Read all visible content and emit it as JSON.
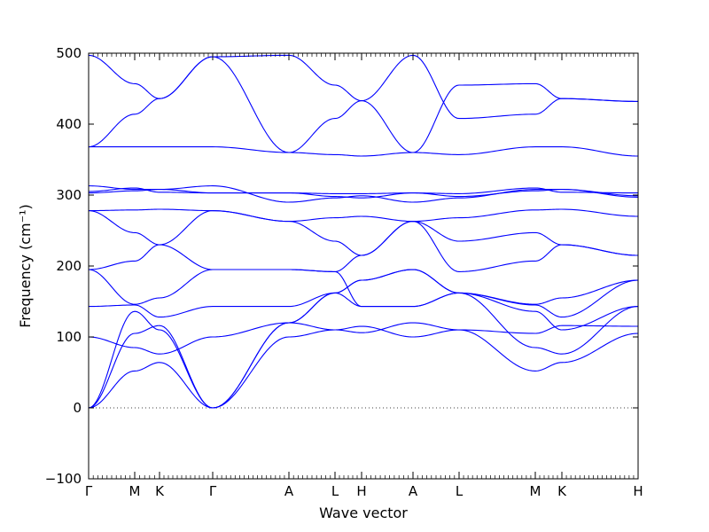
{
  "chart_data": {
    "type": "line",
    "xlabel": "Wave vector",
    "ylabel": "Frequency (cm⁻¹)",
    "ylim": [
      -100,
      500
    ],
    "yticks": [
      -100,
      0,
      100,
      200,
      300,
      400,
      500
    ],
    "xlim": [
      0,
      15.5
    ],
    "xticks": [
      {
        "label": "Γ",
        "x": 0
      },
      {
        "label": "M",
        "x": 1.3
      },
      {
        "label": "K",
        "x": 2.0
      },
      {
        "label": "Γ",
        "x": 3.5
      },
      {
        "label": "A",
        "x": 5.65
      },
      {
        "label": "L",
        "x": 6.95
      },
      {
        "label": "H",
        "x": 7.7
      },
      {
        "label": "A",
        "x": 9.15
      },
      {
        "label": "L",
        "x": 10.45
      },
      {
        "label": "M",
        "x": 12.6
      },
      {
        "label": "K",
        "x": 13.35
      },
      {
        "label": "H",
        "x": 15.5
      }
    ],
    "zero_line": 0,
    "line_color": "#0000ff",
    "branches": [
      {
        "points": [
          [
            0,
            0
          ],
          [
            1.3,
            52
          ],
          [
            2.0,
            64
          ],
          [
            3.5,
            0
          ],
          [
            5.65,
            100
          ],
          [
            6.95,
            110
          ],
          [
            7.7,
            115
          ],
          [
            9.15,
            100
          ],
          [
            10.45,
            110
          ],
          [
            12.6,
            52
          ],
          [
            13.35,
            64
          ],
          [
            15.5,
            105
          ]
        ]
      },
      {
        "points": [
          [
            0,
            0
          ],
          [
            1.3,
            105
          ],
          [
            2.0,
            116
          ],
          [
            3.5,
            0
          ],
          [
            5.65,
            120
          ],
          [
            6.95,
            110
          ],
          [
            7.7,
            106
          ],
          [
            9.15,
            120
          ],
          [
            10.45,
            110
          ],
          [
            12.6,
            105
          ],
          [
            13.35,
            116
          ],
          [
            15.5,
            115
          ]
        ]
      },
      {
        "points": [
          [
            0,
            0
          ],
          [
            1.3,
            136
          ],
          [
            2.0,
            110
          ],
          [
            3.5,
            0
          ],
          [
            5.65,
            120
          ],
          [
            6.95,
            162
          ],
          [
            7.7,
            180
          ],
          [
            9.15,
            195
          ],
          [
            10.45,
            162
          ],
          [
            12.6,
            136
          ],
          [
            13.35,
            110
          ],
          [
            15.5,
            143
          ]
        ]
      },
      {
        "points": [
          [
            0,
            100
          ],
          [
            1.3,
            85
          ],
          [
            2.0,
            76
          ],
          [
            3.5,
            100
          ],
          [
            5.65,
            120
          ],
          [
            6.95,
            162
          ],
          [
            7.7,
            143
          ],
          [
            9.15,
            143
          ],
          [
            10.45,
            162
          ],
          [
            12.6,
            85
          ],
          [
            13.35,
            76
          ],
          [
            15.5,
            143
          ]
        ]
      },
      {
        "points": [
          [
            0,
            143
          ],
          [
            1.3,
            145
          ],
          [
            2.0,
            128
          ],
          [
            3.5,
            143
          ],
          [
            5.65,
            143
          ],
          [
            6.95,
            162
          ],
          [
            7.7,
            180
          ],
          [
            9.15,
            195
          ],
          [
            10.45,
            162
          ],
          [
            12.6,
            145
          ],
          [
            13.35,
            128
          ],
          [
            15.5,
            180
          ]
        ]
      },
      {
        "points": [
          [
            0,
            195
          ],
          [
            1.3,
            146
          ],
          [
            2.0,
            155
          ],
          [
            3.5,
            195
          ],
          [
            5.65,
            195
          ],
          [
            6.95,
            192
          ],
          [
            7.7,
            143
          ],
          [
            9.15,
            143
          ],
          [
            10.45,
            162
          ],
          [
            12.6,
            146
          ],
          [
            13.35,
            155
          ],
          [
            15.5,
            180
          ]
        ]
      },
      {
        "points": [
          [
            0,
            195
          ],
          [
            1.3,
            207
          ],
          [
            2.0,
            230
          ],
          [
            3.5,
            195
          ],
          [
            5.65,
            195
          ],
          [
            6.95,
            192
          ],
          [
            7.7,
            215
          ],
          [
            9.15,
            263
          ],
          [
            10.45,
            192
          ],
          [
            12.6,
            207
          ],
          [
            13.35,
            230
          ],
          [
            15.5,
            215
          ]
        ]
      },
      {
        "points": [
          [
            0,
            278
          ],
          [
            1.3,
            247
          ],
          [
            2.0,
            230
          ],
          [
            3.5,
            278
          ],
          [
            5.65,
            263
          ],
          [
            6.95,
            235
          ],
          [
            7.7,
            215
          ],
          [
            9.15,
            263
          ],
          [
            10.45,
            235
          ],
          [
            12.6,
            247
          ],
          [
            13.35,
            230
          ],
          [
            15.5,
            215
          ]
        ]
      },
      {
        "points": [
          [
            0,
            278
          ],
          [
            1.3,
            279
          ],
          [
            2.0,
            280
          ],
          [
            3.5,
            278
          ],
          [
            5.65,
            263
          ],
          [
            6.95,
            268
          ],
          [
            7.7,
            270
          ],
          [
            9.15,
            263
          ],
          [
            10.45,
            268
          ],
          [
            12.6,
            279
          ],
          [
            13.35,
            280
          ],
          [
            15.5,
            270
          ]
        ]
      },
      {
        "points": [
          [
            0,
            303
          ],
          [
            1.3,
            306
          ],
          [
            2.0,
            308
          ],
          [
            3.5,
            303
          ],
          [
            5.65,
            303
          ],
          [
            6.95,
            298
          ],
          [
            7.7,
            296
          ],
          [
            9.15,
            303
          ],
          [
            10.45,
            298
          ],
          [
            12.6,
            306
          ],
          [
            13.35,
            308
          ],
          [
            15.5,
            297
          ]
        ]
      },
      {
        "points": [
          [
            0,
            305
          ],
          [
            1.3,
            310
          ],
          [
            2.0,
            304
          ],
          [
            3.5,
            303
          ],
          [
            5.65,
            303
          ],
          [
            6.95,
            302
          ],
          [
            7.7,
            302
          ],
          [
            9.15,
            303
          ],
          [
            10.45,
            302
          ],
          [
            12.6,
            310
          ],
          [
            13.35,
            304
          ],
          [
            15.5,
            303
          ]
        ]
      },
      {
        "points": [
          [
            0,
            313
          ],
          [
            1.3,
            308
          ],
          [
            2.0,
            308
          ],
          [
            3.5,
            313
          ],
          [
            5.65,
            290
          ],
          [
            6.95,
            296
          ],
          [
            7.7,
            299
          ],
          [
            9.15,
            290
          ],
          [
            10.45,
            296
          ],
          [
            12.6,
            308
          ],
          [
            13.35,
            308
          ],
          [
            15.5,
            299
          ]
        ]
      },
      {
        "points": [
          [
            0,
            368
          ],
          [
            1.3,
            368
          ],
          [
            2.0,
            368
          ],
          [
            3.5,
            368
          ],
          [
            5.65,
            360
          ],
          [
            6.95,
            357
          ],
          [
            7.7,
            355
          ],
          [
            9.15,
            360
          ],
          [
            10.45,
            357
          ],
          [
            12.6,
            368
          ],
          [
            13.35,
            368
          ],
          [
            15.5,
            355
          ]
        ]
      },
      {
        "points": [
          [
            0,
            368
          ],
          [
            1.3,
            414
          ],
          [
            2.0,
            436
          ],
          [
            3.5,
            495
          ],
          [
            5.65,
            360
          ],
          [
            6.95,
            408
          ],
          [
            7.7,
            433
          ],
          [
            9.15,
            497
          ],
          [
            10.45,
            408
          ],
          [
            12.6,
            414
          ],
          [
            13.35,
            436
          ],
          [
            15.5,
            432
          ]
        ]
      },
      {
        "points": [
          [
            0,
            497
          ],
          [
            1.3,
            457
          ],
          [
            2.0,
            436
          ],
          [
            3.5,
            495
          ],
          [
            5.65,
            497
          ],
          [
            6.95,
            455
          ],
          [
            7.7,
            433
          ],
          [
            9.15,
            360
          ],
          [
            10.45,
            455
          ],
          [
            12.6,
            457
          ],
          [
            13.35,
            436
          ],
          [
            15.5,
            432
          ]
        ]
      }
    ]
  }
}
